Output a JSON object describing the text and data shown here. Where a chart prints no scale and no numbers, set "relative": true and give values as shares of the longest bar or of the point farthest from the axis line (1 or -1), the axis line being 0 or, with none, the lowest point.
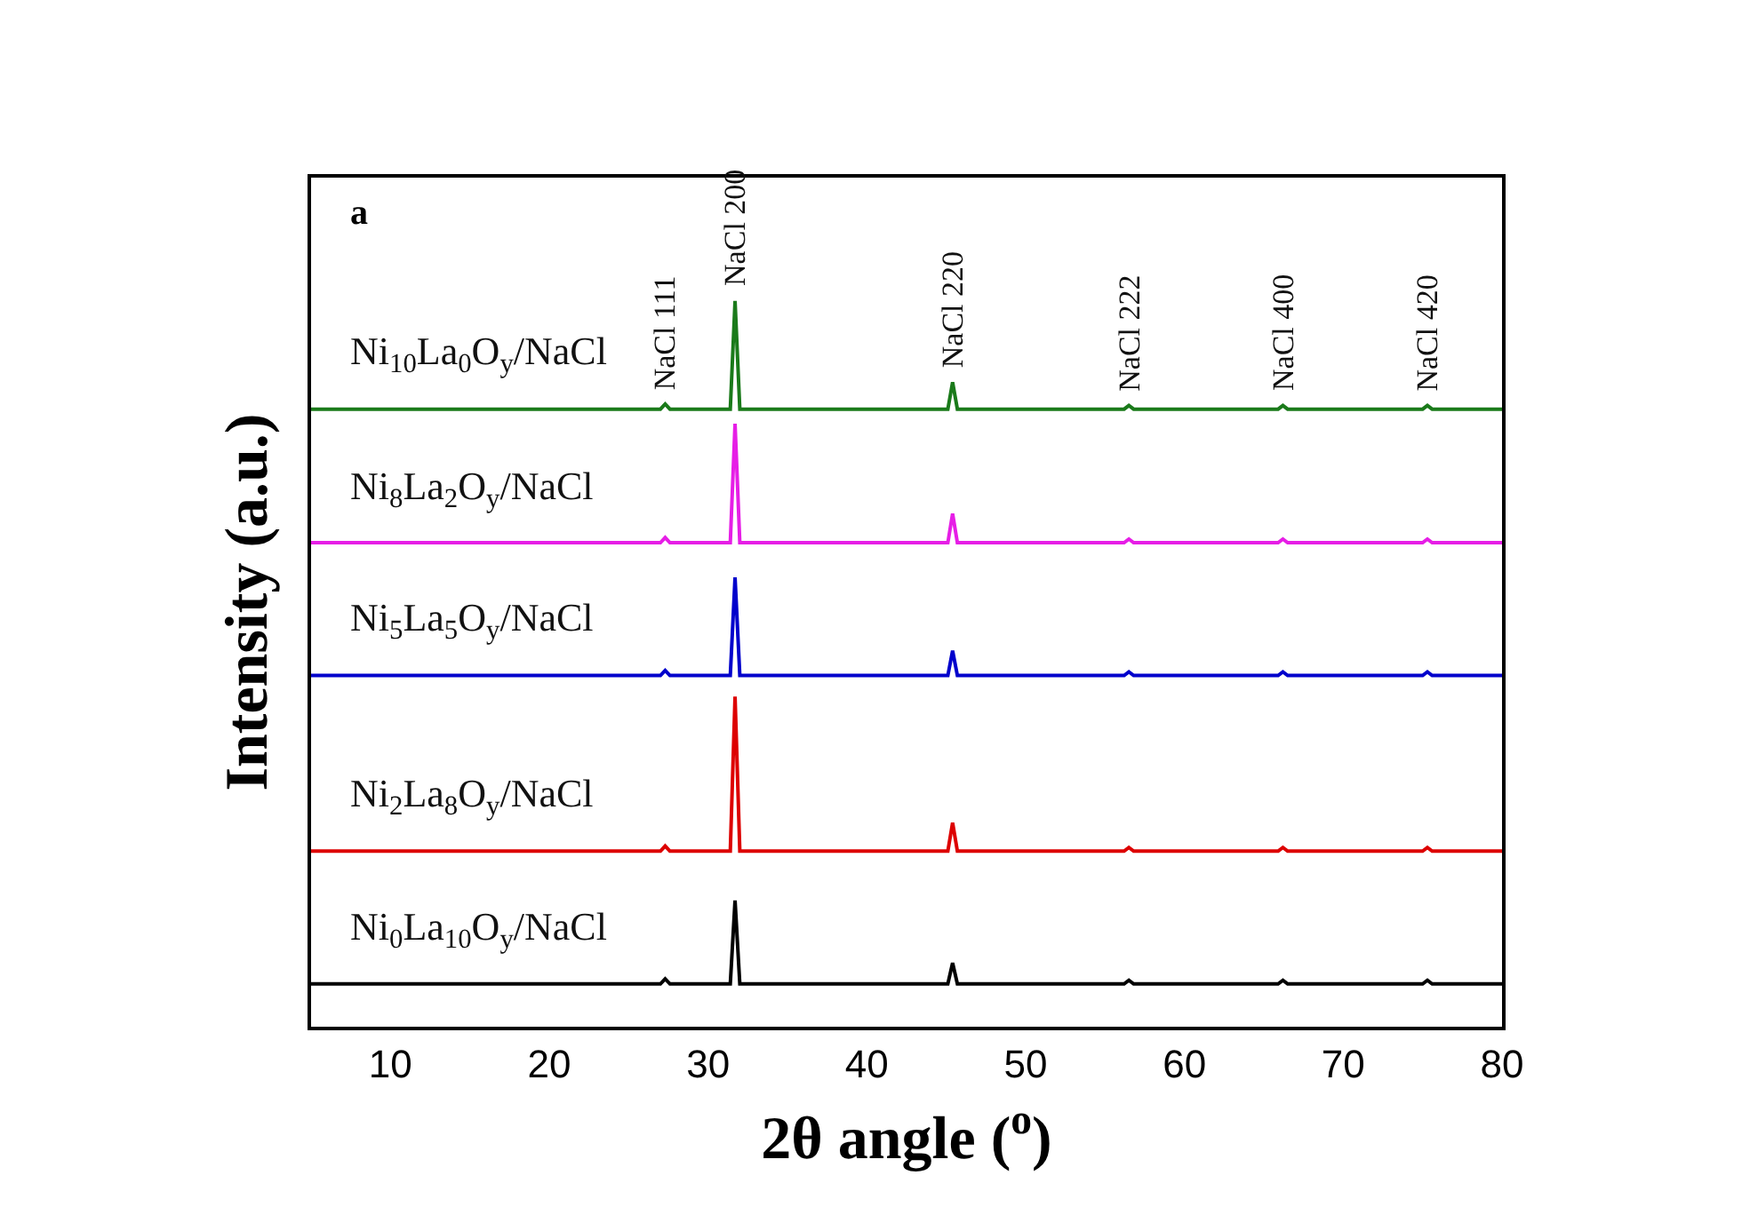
{
  "chart_data": {
    "type": "line",
    "relative": true,
    "tick_labels": "x",
    "legend": false,
    "xlabel": "2θ angle ($^{o}$)",
    "ylabel": "Intensity (a.u.)",
    "xlim": [
      5,
      80
    ],
    "xticks": [
      10,
      20,
      30,
      40,
      50,
      60,
      70,
      80
    ],
    "x": [
      5,
      27.0,
      27.3,
      27.6,
      31.4,
      31.7,
      32.0,
      45.1,
      45.4,
      45.7,
      56.2,
      56.5,
      56.8,
      65.9,
      66.2,
      66.5,
      75.0,
      75.3,
      75.6,
      80
    ],
    "series": [
      {
        "name": "Ni$_{10}$La$_{0}$O$_{y}$/NaCl",
        "color": "#1a7a1a",
        "values": [
          0.851,
          0.851,
          0.858,
          0.851,
          0.851,
          1.0,
          0.851,
          0.851,
          0.888,
          0.851,
          0.851,
          0.856,
          0.851,
          0.851,
          0.856,
          0.851,
          0.851,
          0.856,
          0.851,
          0.851
        ]
      },
      {
        "name": "Ni$_{8}$La$_{2}$O$_{y}$/NaCl",
        "color": "#e61ee6",
        "values": [
          0.667,
          0.667,
          0.674,
          0.667,
          0.667,
          0.831,
          0.667,
          0.667,
          0.707,
          0.667,
          0.667,
          0.672,
          0.667,
          0.667,
          0.672,
          0.667,
          0.667,
          0.672,
          0.667,
          0.667
        ]
      },
      {
        "name": "Ni$_{5}$La$_{5}$O$_{y}$/NaCl",
        "color": "#0000cc",
        "values": [
          0.484,
          0.484,
          0.491,
          0.484,
          0.484,
          0.619,
          0.484,
          0.484,
          0.518,
          0.484,
          0.484,
          0.489,
          0.484,
          0.484,
          0.489,
          0.484,
          0.484,
          0.489,
          0.484,
          0.484
        ]
      },
      {
        "name": "Ni$_{2}$La$_{8}$O$_{y}$/NaCl",
        "color": "#dd0000",
        "values": [
          0.242,
          0.242,
          0.249,
          0.242,
          0.242,
          0.455,
          0.242,
          0.242,
          0.281,
          0.242,
          0.242,
          0.247,
          0.242,
          0.242,
          0.247,
          0.242,
          0.242,
          0.247,
          0.242,
          0.242
        ]
      },
      {
        "name": "Ni$_{0}$La$_{10}$O$_{y}$/NaCl",
        "color": "#000000",
        "values": [
          0.059,
          0.059,
          0.066,
          0.059,
          0.059,
          0.174,
          0.059,
          0.059,
          0.088,
          0.059,
          0.059,
          0.064,
          0.059,
          0.059,
          0.064,
          0.059,
          0.059,
          0.064,
          0.059,
          0.059
        ]
      }
    ],
    "annotations": [
      "a",
      {
        "text": "NaCl 111",
        "x": 27.3,
        "y": 0.858
      },
      {
        "text": "NaCl 200",
        "x": 31.7,
        "y": 1.0
      },
      {
        "text": "NaCl 220",
        "x": 45.4,
        "y": 0.888
      },
      {
        "text": "NaCl 222",
        "x": 56.5,
        "y": 0.856
      },
      {
        "text": "NaCl 400",
        "x": 66.2,
        "y": 0.856
      },
      {
        "text": "NaCl 420",
        "x": 75.3,
        "y": 0.856
      }
    ]
  }
}
